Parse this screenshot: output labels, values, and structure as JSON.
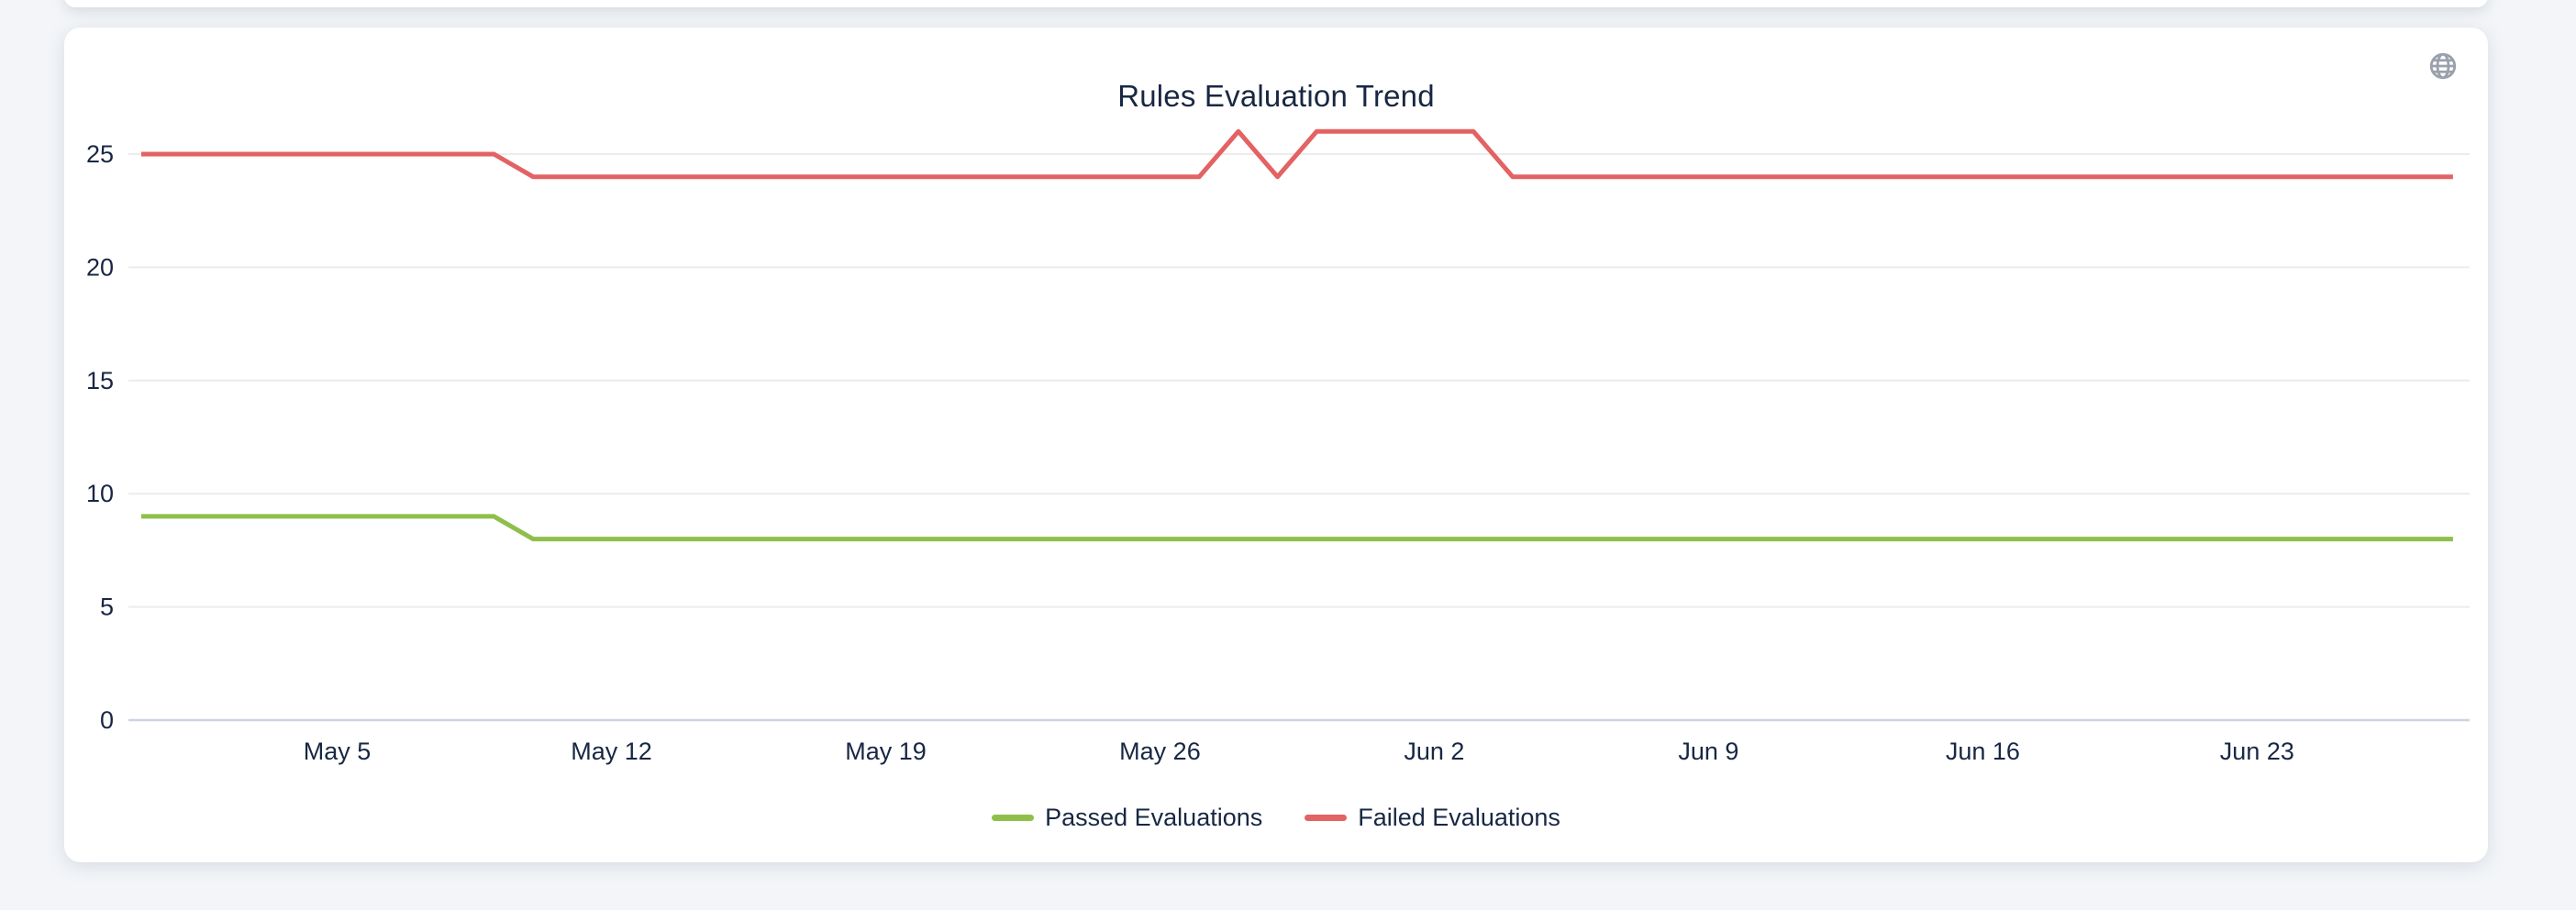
{
  "page": {
    "background_color": "#f3f5f8"
  },
  "card": {
    "toolbar_icon": "globe-icon",
    "toolbar_icon_color": "#9aa1ad"
  },
  "chart_data": {
    "type": "line",
    "title": "Rules Evaluation Trend",
    "xlabel": "",
    "ylabel": "",
    "grid": true,
    "grid_color": "#ececec",
    "axis_line_color": "#ccd4e2",
    "label_color": "#182743",
    "legend_position": "bottom",
    "yticks": [
      0,
      5,
      10,
      15,
      20,
      25
    ],
    "xticks": [
      {
        "label": "May 5",
        "day_index": 5
      },
      {
        "label": "May 12",
        "day_index": 12
      },
      {
        "label": "May 19",
        "day_index": 19
      },
      {
        "label": "May 26",
        "day_index": 26
      },
      {
        "label": "Jun 2",
        "day_index": 33
      },
      {
        "label": "Jun 9",
        "day_index": 40
      },
      {
        "label": "Jun 16",
        "day_index": 47
      },
      {
        "label": "Jun 23",
        "day_index": 54
      }
    ],
    "x": [
      "Apr 30",
      "May 1",
      "May 2",
      "May 3",
      "May 4",
      "May 5",
      "May 6",
      "May 7",
      "May 8",
      "May 9",
      "May 10",
      "May 11",
      "May 12",
      "May 13",
      "May 14",
      "May 15",
      "May 16",
      "May 17",
      "May 18",
      "May 19",
      "May 20",
      "May 21",
      "May 22",
      "May 23",
      "May 24",
      "May 25",
      "May 26",
      "May 27",
      "May 28",
      "May 29",
      "May 30",
      "May 31",
      "Jun 1",
      "Jun 2",
      "Jun 3",
      "Jun 4",
      "Jun 5",
      "Jun 6",
      "Jun 7",
      "Jun 8",
      "Jun 9",
      "Jun 10",
      "Jun 11",
      "Jun 12",
      "Jun 13",
      "Jun 14",
      "Jun 15",
      "Jun 16",
      "Jun 17",
      "Jun 18",
      "Jun 19",
      "Jun 20",
      "Jun 21",
      "Jun 22",
      "Jun 23",
      "Jun 24",
      "Jun 25",
      "Jun 26",
      "Jun 27",
      "Jun 28"
    ],
    "series": [
      {
        "name": "Passed Evaluations",
        "color": "#8fbf4b",
        "values": [
          9,
          9,
          9,
          9,
          9,
          9,
          9,
          9,
          9,
          9,
          8,
          8,
          8,
          8,
          8,
          8,
          8,
          8,
          8,
          8,
          8,
          8,
          8,
          8,
          8,
          8,
          8,
          8,
          8,
          8,
          8,
          8,
          8,
          8,
          8,
          8,
          8,
          8,
          8,
          8,
          8,
          8,
          8,
          8,
          8,
          8,
          8,
          8,
          8,
          8,
          8,
          8,
          8,
          8,
          8,
          8,
          8,
          8,
          8,
          8
        ]
      },
      {
        "name": "Failed Evaluations",
        "color": "#e36263",
        "values": [
          25,
          25,
          25,
          25,
          25,
          25,
          25,
          25,
          25,
          25,
          24,
          24,
          24,
          24,
          24,
          24,
          24,
          24,
          24,
          24,
          24,
          24,
          24,
          24,
          24,
          24,
          24,
          24,
          26,
          24,
          26,
          26,
          26,
          26,
          26,
          24,
          24,
          24,
          24,
          24,
          24,
          24,
          24,
          24,
          24,
          24,
          24,
          24,
          24,
          24,
          24,
          24,
          24,
          24,
          24,
          24,
          24,
          24,
          24,
          24
        ]
      }
    ]
  }
}
